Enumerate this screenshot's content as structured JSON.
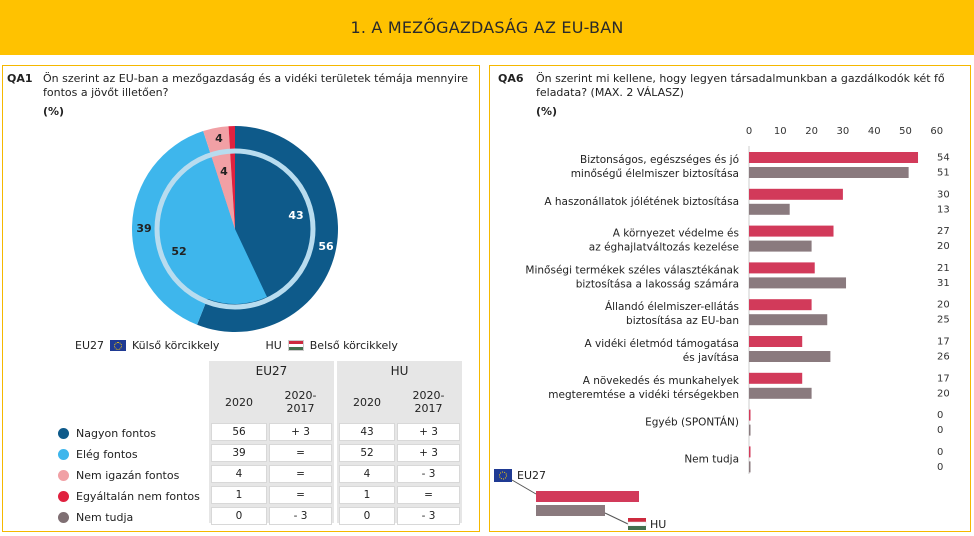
{
  "header": {
    "title": "1. A MEZŐGAZDASÁG AZ EU-BAN"
  },
  "colors": {
    "banner": "#ffc200",
    "nagyon": "#0e5a8a",
    "eleg": "#3eb6ec",
    "nemigazan": "#f1a0a5",
    "egyaltalan": "#e0213f",
    "nemtudja": "#7f6f73",
    "eu_bar": "#d23a5a",
    "hu_bar": "#8a7a7e"
  },
  "left": {
    "code": "QA1",
    "question": "Ön szerint az EU-ban a mezőgazdaság és a vidéki területek témája mennyire fontos a jövőt illetően?",
    "unit": "(%)",
    "legend_eu": "EU27",
    "legend_eu_text": "Külső körcikkely",
    "legend_hu": "HU",
    "legend_hu_text": "Belső körcikkely",
    "table": {
      "group_eu": "EU27",
      "group_hu": "HU",
      "col_2020": "2020",
      "col_change": "2020-\n2017"
    },
    "rows": [
      {
        "label": "Nagyon fontos",
        "eu": "56",
        "eu_d": "+ 3",
        "hu": "43",
        "hu_d": "+ 3"
      },
      {
        "label": "Elég fontos",
        "eu": "39",
        "eu_d": "=",
        "hu": "52",
        "hu_d": "+ 3"
      },
      {
        "label": "Nem igazán fontos",
        "eu": "4",
        "eu_d": "=",
        "hu": "4",
        "hu_d": "- 3"
      },
      {
        "label": "Egyáltalán nem fontos",
        "eu": "1",
        "eu_d": "=",
        "hu": "1",
        "hu_d": "="
      },
      {
        "label": "Nem tudja",
        "eu": "0",
        "eu_d": "- 3",
        "hu": "0",
        "hu_d": "- 3"
      }
    ]
  },
  "right": {
    "code": "QA6",
    "question": "Ön szerint mi kellene, hogy legyen társadalmunkban a gazdálkodók két fő feladata? (MAX. 2 VÁLASZ)",
    "unit": "(%)",
    "legend_eu": "EU27",
    "legend_hu": "HU"
  },
  "chart_data": [
    {
      "type": "pie",
      "title": "",
      "categories": [
        "Nagyon fontos",
        "Elég fontos",
        "Nem igazán fontos",
        "Egyáltalán nem fontos",
        "Nem tudja"
      ],
      "series": [
        {
          "name": "EU27",
          "values": [
            56,
            39,
            4,
            1,
            0
          ]
        },
        {
          "name": "HU",
          "values": [
            43,
            52,
            4,
            1,
            0
          ]
        }
      ],
      "labels": {
        "outer": [
          "56",
          "39",
          "4",
          ""
        ],
        "inner": [
          "43",
          "52",
          "4",
          ""
        ]
      }
    },
    {
      "type": "bar",
      "orientation": "horizontal",
      "title": "",
      "xlim": [
        0,
        60
      ],
      "ticks": [
        "0",
        "10",
        "20",
        "30",
        "40",
        "50",
        "60"
      ],
      "categories": [
        "Biztonságos, egészséges és jó\nminőségű élelmiszer biztosítása",
        "A haszonállatok jólétének biztosítása",
        "A környezet védelme és\naz éghajlatváltozás kezelése",
        "Minőségi termékek széles választékának\nbiztosítása a lakosság számára",
        "Állandó élelmiszer-ellátás\nbiztosítása az EU-ban",
        "A vidéki életmód támogatása\nés javítása",
        "A növekedés és munkahelyek\nmegteremtése a vidéki térségekben",
        "Egyéb (SPONTÁN)",
        "Nem tudja"
      ],
      "series": [
        {
          "name": "EU27",
          "values": [
            54,
            30,
            27,
            21,
            20,
            17,
            17,
            0,
            0
          ]
        },
        {
          "name": "HU",
          "values": [
            51,
            13,
            20,
            31,
            25,
            26,
            20,
            0,
            0
          ]
        }
      ]
    }
  ]
}
